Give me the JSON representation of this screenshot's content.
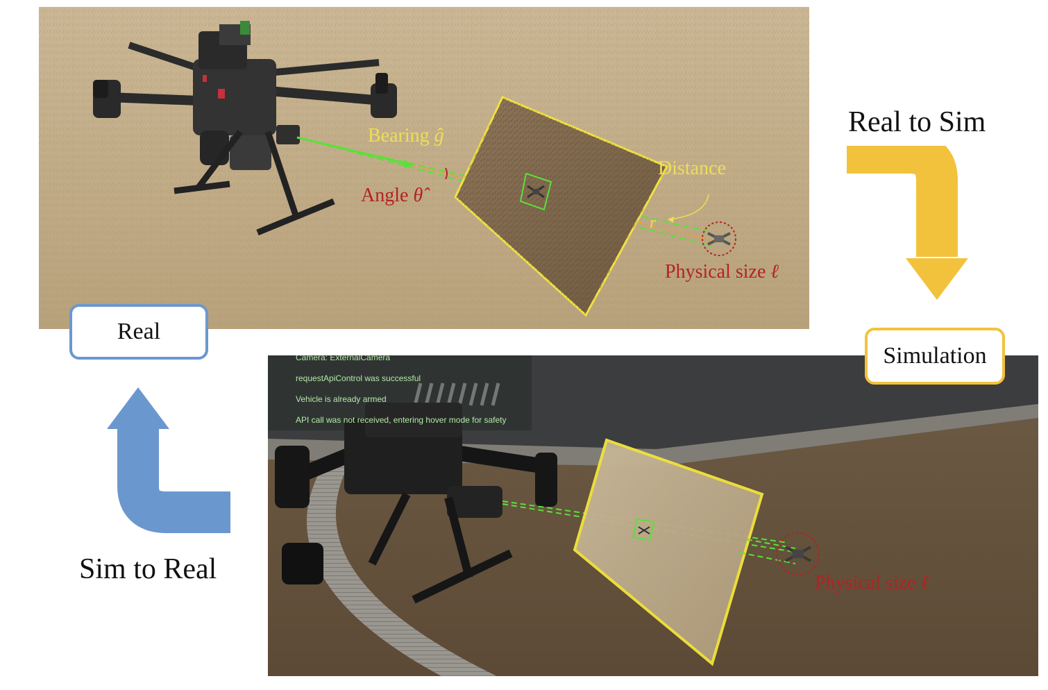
{
  "real_panel": {
    "label": "Real",
    "annotations": {
      "bearing": "Bearing",
      "bearing_symbol": "ĝ",
      "angle": "Angle",
      "angle_symbol": "θ̂",
      "distance": "Distance",
      "distance_symbol": "r",
      "physical_size": "Physical size",
      "physical_size_symbol": "ℓ"
    }
  },
  "sim_panel": {
    "label": "Simulation",
    "hud_lines": [
      "Camera: ExternalCamera",
      "requestApiControl was successful",
      "Vehicle is already armed",
      "API call was not received, entering hover mode for safety"
    ],
    "annotations": {
      "physical_size": "Physical size",
      "physical_size_symbol": "ℓ"
    }
  },
  "flow": {
    "real_to_sim": "Real to Sim",
    "sim_to_real": "Sim to Real"
  },
  "colors": {
    "real_accent": "#6b97cf",
    "sim_accent": "#f3c23c",
    "annotation_yellow": "#ecdf55",
    "annotation_red": "#b42222",
    "bearing_green": "#5be03a"
  }
}
